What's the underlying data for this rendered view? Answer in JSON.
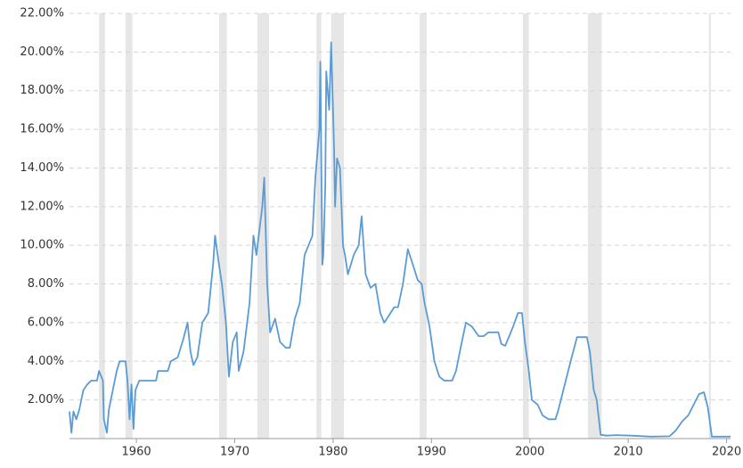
{
  "chart_data": {
    "type": "line",
    "xlim": [
      1953.2,
      2020.4
    ],
    "xticks": [
      1960,
      1970,
      1980,
      1990,
      2000,
      2010,
      2020
    ],
    "ylim": [
      0,
      22
    ],
    "yticks": [
      {
        "value": 2,
        "label": "2.00%"
      },
      {
        "value": 4,
        "label": "4.00%"
      },
      {
        "value": 6,
        "label": "6.00%"
      },
      {
        "value": 8,
        "label": "8.00%"
      },
      {
        "value": 10,
        "label": "10.00%"
      },
      {
        "value": 12,
        "label": "12.00%"
      },
      {
        "value": 14,
        "label": "14.00%"
      },
      {
        "value": 16,
        "label": "16.00%"
      },
      {
        "value": 18,
        "label": "18.00%"
      },
      {
        "value": 20,
        "label": "20.00%"
      },
      {
        "value": 22,
        "label": "22.00%"
      }
    ],
    "grid": true,
    "shade_color": "#e6e6e6",
    "shaded_ranges": [
      [
        1956.2,
        1956.8
      ],
      [
        1958.9,
        1959.6
      ],
      [
        1968.4,
        1969.2
      ],
      [
        1972.3,
        1973.5
      ],
      [
        1978.3,
        1978.8
      ],
      [
        1979.8,
        1981.1
      ],
      [
        1988.8,
        1989.5
      ],
      [
        1999.3,
        1999.9
      ],
      [
        2005.9,
        2007.3
      ],
      [
        2018.2,
        2018.4
      ]
    ],
    "series": [
      {
        "color": "#5b9bd5",
        "x": [
          1953.2,
          1953.4,
          1953.6,
          1953.9,
          1954.2,
          1954.6,
          1955.0,
          1955.4,
          1956.0,
          1956.2,
          1956.6,
          1956.7,
          1957.0,
          1957.2,
          1957.6,
          1958.0,
          1958.3,
          1958.9,
          1959.1,
          1959.3,
          1959.5,
          1959.7,
          1959.9,
          1960.3,
          1961.0,
          1962.0,
          1962.2,
          1963.2,
          1963.5,
          1964.2,
          1964.8,
          1965.2,
          1965.5,
          1965.8,
          1966.2,
          1966.7,
          1967.3,
          1967.8,
          1968.0,
          1968.4,
          1968.7,
          1969.1,
          1969.4,
          1969.8,
          1970.2,
          1970.4,
          1970.9,
          1971.5,
          1971.9,
          1972.2,
          1972.8,
          1973.0,
          1973.3,
          1973.6,
          1974.1,
          1974.6,
          1975.2,
          1975.6,
          1976.1,
          1976.6,
          1977.1,
          1977.5,
          1977.9,
          1978.2,
          1978.6,
          1978.7,
          1978.9,
          1979.0,
          1979.2,
          1979.3,
          1979.6,
          1979.8,
          1980.1,
          1980.2,
          1980.4,
          1980.7,
          1981.0,
          1981.2,
          1981.5,
          1982.1,
          1982.6,
          1982.9,
          1983.3,
          1983.8,
          1984.3,
          1984.8,
          1985.2,
          1985.6,
          1986.2,
          1986.6,
          1987.1,
          1987.6,
          1988.1,
          1988.6,
          1989.0,
          1989.3,
          1989.8,
          1990.3,
          1990.8,
          1991.3,
          1992.1,
          1992.5,
          1993.0,
          1993.5,
          1994.1,
          1994.8,
          1995.3,
          1995.8,
          1996.3,
          1996.8,
          1997.1,
          1997.5,
          1997.9,
          1998.3,
          1998.8,
          1999.2,
          1999.5,
          1999.9,
          2000.2,
          2000.8,
          2001.3,
          2001.9,
          2002.6,
          2002.9,
          2003.5,
          2004.1,
          2004.8,
          2005.8,
          2006.1,
          2006.5,
          2006.8,
          2007.2,
          2007.8,
          2008.8,
          2010.3,
          2012.3,
          2014.2,
          2014.8,
          2015.5,
          2016.1,
          2016.7,
          2017.2,
          2017.7,
          2018.1,
          2018.5,
          2020.4
        ],
        "values": [
          1.4,
          0.3,
          1.4,
          1.0,
          1.5,
          2.5,
          2.8,
          3.0,
          3.0,
          3.5,
          3.0,
          1.0,
          0.3,
          1.5,
          2.5,
          3.5,
          4.0,
          4.0,
          3.0,
          1.0,
          2.8,
          0.5,
          2.5,
          3.0,
          3.0,
          3.0,
          3.5,
          3.5,
          4.0,
          4.2,
          5.2,
          6.0,
          4.5,
          3.8,
          4.2,
          6.0,
          6.5,
          9.0,
          10.5,
          9.0,
          8.0,
          6.0,
          3.2,
          5.0,
          5.5,
          3.5,
          4.5,
          7.0,
          10.5,
          9.5,
          12.0,
          13.5,
          8.0,
          5.5,
          6.2,
          5.0,
          4.7,
          4.7,
          6.2,
          7.0,
          9.5,
          10.0,
          10.5,
          13.5,
          16.0,
          19.5,
          9.0,
          9.5,
          13.0,
          19.0,
          17.0,
          20.5,
          15.0,
          12.0,
          14.5,
          14.0,
          10.0,
          9.5,
          8.5,
          9.5,
          10.0,
          11.5,
          8.5,
          7.8,
          8.0,
          6.5,
          6.0,
          6.3,
          6.8,
          6.8,
          8.0,
          9.8,
          9.0,
          8.2,
          8.0,
          7.0,
          5.8,
          4.0,
          3.2,
          3.0,
          3.0,
          3.5,
          4.8,
          6.0,
          5.8,
          5.3,
          5.3,
          5.5,
          5.5,
          5.5,
          4.9,
          4.8,
          5.3,
          5.8,
          6.5,
          6.5,
          5.0,
          3.5,
          2.0,
          1.75,
          1.2,
          1.0,
          1.0,
          1.5,
          2.7,
          3.9,
          5.25,
          5.25,
          4.5,
          2.5,
          2.0,
          0.2,
          0.15,
          0.18,
          0.15,
          0.1,
          0.12,
          0.4,
          0.9,
          1.2,
          1.8,
          2.3,
          2.4,
          1.6,
          0.1,
          0.1
        ]
      }
    ]
  }
}
